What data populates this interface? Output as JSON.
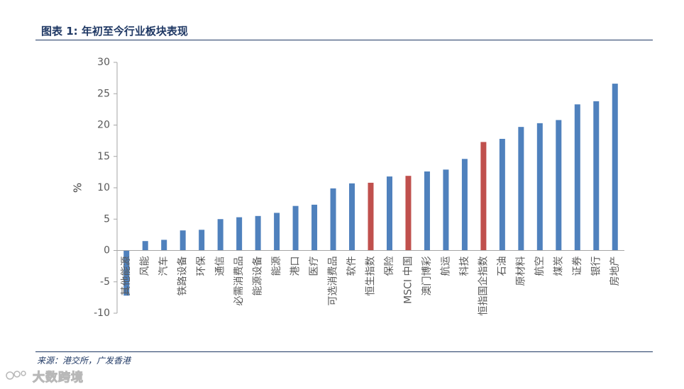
{
  "figure_title": "图表 1: 年初至今行业板块表现",
  "source_text": "来源：港交所，广发香港",
  "watermark_text": "大数跨境",
  "chart_data": {
    "type": "bar",
    "ylabel": "%",
    "ylim": [
      -10,
      30
    ],
    "yticks": [
      -10,
      -5,
      0,
      5,
      10,
      15,
      20,
      25,
      30
    ],
    "grid": false,
    "legend": "none",
    "categories": [
      "其他能源",
      "风能",
      "汽车",
      "铁路设备",
      "环保",
      "通信",
      "必需消费品",
      "能源设备",
      "能源",
      "港口",
      "医疗",
      "可选消费品",
      "软件",
      "恒生指数",
      "保险",
      "MSCI 中国",
      "澳门博彩",
      "航运",
      "科技",
      "恒指国企指数",
      "石油",
      "原材料",
      "航空",
      "煤炭",
      "证券",
      "银行",
      "房地产"
    ],
    "values": [
      -7.2,
      1.5,
      1.7,
      3.2,
      3.3,
      5.0,
      5.3,
      5.5,
      6.0,
      7.1,
      7.3,
      9.9,
      10.7,
      10.8,
      11.8,
      11.9,
      12.6,
      12.9,
      14.6,
      17.3,
      17.8,
      19.7,
      20.3,
      20.8,
      23.3,
      23.8,
      26.6
    ],
    "colors": {
      "default": "#4f81bd",
      "highlight": "#c0504d"
    },
    "highlight_categories": [
      "恒生指数",
      "MSCI 中国",
      "恒指国企指数"
    ]
  }
}
